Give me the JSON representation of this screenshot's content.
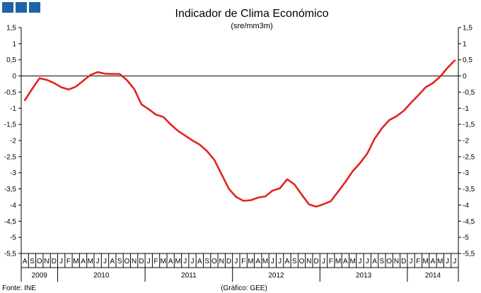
{
  "chart_data": {
    "type": "line",
    "title": "Indicador de Clima Económico",
    "subtitle": "(sre/mm3m)",
    "xlabel": "",
    "ylabel": "",
    "ylim": [
      -5.5,
      1.5
    ],
    "yticks": [
      "1,5",
      "1",
      "0,5",
      "0",
      "-0,5",
      "-1",
      "-1,5",
      "-2",
      "-2,5",
      "-3",
      "-3,5",
      "-4",
      "-4,5",
      "-5",
      "-5,5"
    ],
    "months": [
      "A",
      "S",
      "O",
      "N",
      "D",
      "J",
      "F",
      "M",
      "A",
      "M",
      "J",
      "J",
      "A",
      "S",
      "O",
      "N",
      "D",
      "J",
      "F",
      "M",
      "A",
      "M",
      "J",
      "J",
      "A",
      "S",
      "O",
      "N",
      "D",
      "J",
      "F",
      "M",
      "A",
      "M",
      "J",
      "J",
      "A",
      "S",
      "O",
      "N",
      "D",
      "J",
      "F",
      "M",
      "A",
      "M",
      "J",
      "J",
      "A",
      "S",
      "O",
      "N",
      "D",
      "J",
      "F",
      "M",
      "A",
      "M",
      "J",
      "J"
    ],
    "years": [
      {
        "label": "2009",
        "start": 0,
        "count": 5
      },
      {
        "label": "2010",
        "start": 5,
        "count": 12
      },
      {
        "label": "2011",
        "start": 17,
        "count": 12
      },
      {
        "label": "2012",
        "start": 29,
        "count": 12
      },
      {
        "label": "2013",
        "start": 41,
        "count": 12
      },
      {
        "label": "2014",
        "start": 53,
        "count": 7
      }
    ],
    "series": [
      {
        "color": "#e3241b",
        "values": [
          -0.75,
          -0.4,
          -0.07,
          -0.12,
          -0.22,
          -0.35,
          -0.42,
          -0.33,
          -0.15,
          0.03,
          0.12,
          0.07,
          0.06,
          0.06,
          -0.13,
          -0.4,
          -0.88,
          -1.03,
          -1.2,
          -1.27,
          -1.5,
          -1.7,
          -1.85,
          -2.0,
          -2.13,
          -2.33,
          -2.6,
          -3.05,
          -3.5,
          -3.75,
          -3.87,
          -3.85,
          -3.77,
          -3.73,
          -3.55,
          -3.48,
          -3.2,
          -3.36,
          -3.68,
          -3.98,
          -4.05,
          -3.97,
          -3.88,
          -3.58,
          -3.28,
          -2.95,
          -2.7,
          -2.4,
          -1.95,
          -1.62,
          -1.37,
          -1.25,
          -1.08,
          -0.83,
          -0.6,
          -0.35,
          -0.22,
          -0.02,
          0.25,
          0.48
        ]
      }
    ]
  },
  "footer": {
    "source": "Fonte: INE",
    "credit": "(Gráfico: GEE)"
  }
}
